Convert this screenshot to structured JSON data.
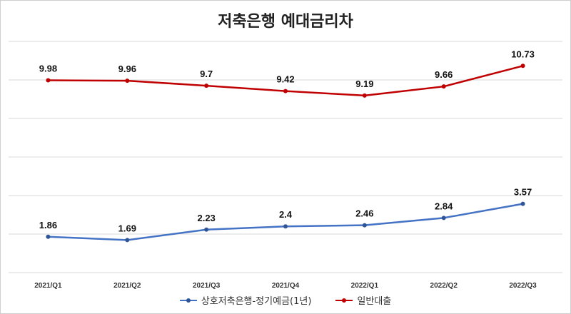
{
  "chart_data": {
    "type": "line",
    "title": "저축은행 예대금리차",
    "categories": [
      "2021/Q1",
      "2021/Q2",
      "2021/Q3",
      "2021/Q4",
      "2022/Q1",
      "2022/Q2",
      "2022/Q3"
    ],
    "series": [
      {
        "name": "상호저축은행-정기예금(1년)",
        "color": "#4472c4",
        "values": [
          1.86,
          1.69,
          2.23,
          2.4,
          2.46,
          2.84,
          3.57
        ]
      },
      {
        "name": "일반대출",
        "color": "#c00000",
        "values": [
          9.98,
          9.96,
          9.7,
          9.42,
          9.19,
          9.66,
          10.73
        ]
      }
    ],
    "ylim": [
      0,
      12
    ],
    "grid": true,
    "legend_position": "bottom"
  }
}
